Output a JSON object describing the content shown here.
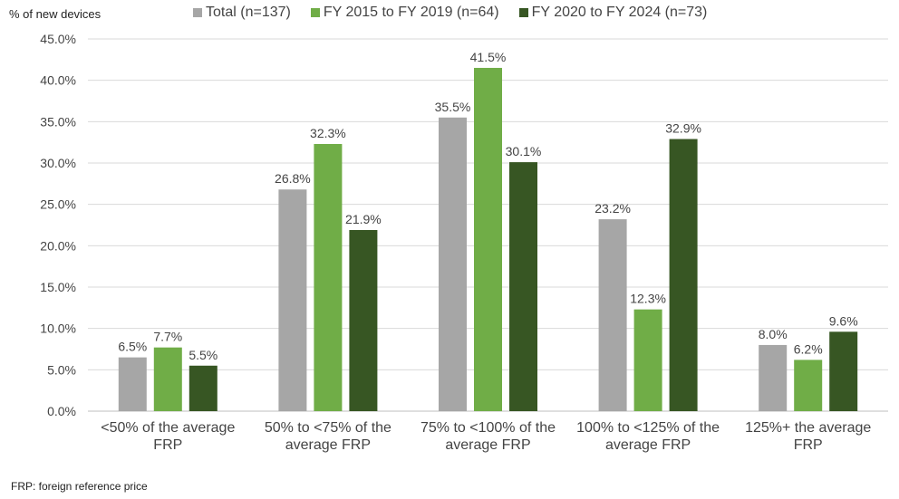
{
  "chart_data": {
    "type": "bar",
    "ylabel": "% of new devices",
    "ylim": [
      0,
      45
    ],
    "yticks": [
      "0.0%",
      "5.0%",
      "10.0%",
      "15.0%",
      "20.0%",
      "25.0%",
      "30.0%",
      "35.0%",
      "40.0%",
      "45.0%"
    ],
    "ytick_values": [
      0,
      5,
      10,
      15,
      20,
      25,
      30,
      35,
      40,
      45
    ],
    "grid": true,
    "legend_position": "top",
    "categories": [
      "<50% of the average FRP",
      "50% to <75% of the average FRP",
      "75% to <100% of the average FRP",
      "100% to <125% of the average FRP",
      "125%+ the average FRP"
    ],
    "category_lines": [
      [
        "<50% of the average",
        "FRP"
      ],
      [
        "50% to <75% of the",
        "average FRP"
      ],
      [
        "75% to <100% of the",
        "average FRP"
      ],
      [
        "100% to <125% of the",
        "average FRP"
      ],
      [
        "125%+ the average",
        "FRP"
      ]
    ],
    "series": [
      {
        "name": "Total (n=137)",
        "color": "#a6a6a6",
        "values": [
          6.5,
          26.8,
          35.5,
          23.2,
          8.0
        ],
        "labels": [
          "6.5%",
          "26.8%",
          "35.5%",
          "23.2%",
          "8.0%"
        ]
      },
      {
        "name": "FY 2015 to FY 2019 (n=64)",
        "color": "#70ad47",
        "values": [
          7.7,
          32.3,
          41.5,
          12.3,
          6.2
        ],
        "labels": [
          "7.7%",
          "32.3%",
          "41.5%",
          "12.3%",
          "6.2%"
        ]
      },
      {
        "name": "FY 2020 to FY 2024 (n=73)",
        "color": "#375623",
        "values": [
          5.5,
          21.9,
          30.1,
          32.9,
          9.6
        ],
        "labels": [
          "5.5%",
          "21.9%",
          "30.1%",
          "32.9%",
          "9.6%"
        ]
      }
    ]
  },
  "footnote": "FRP: foreign reference price"
}
